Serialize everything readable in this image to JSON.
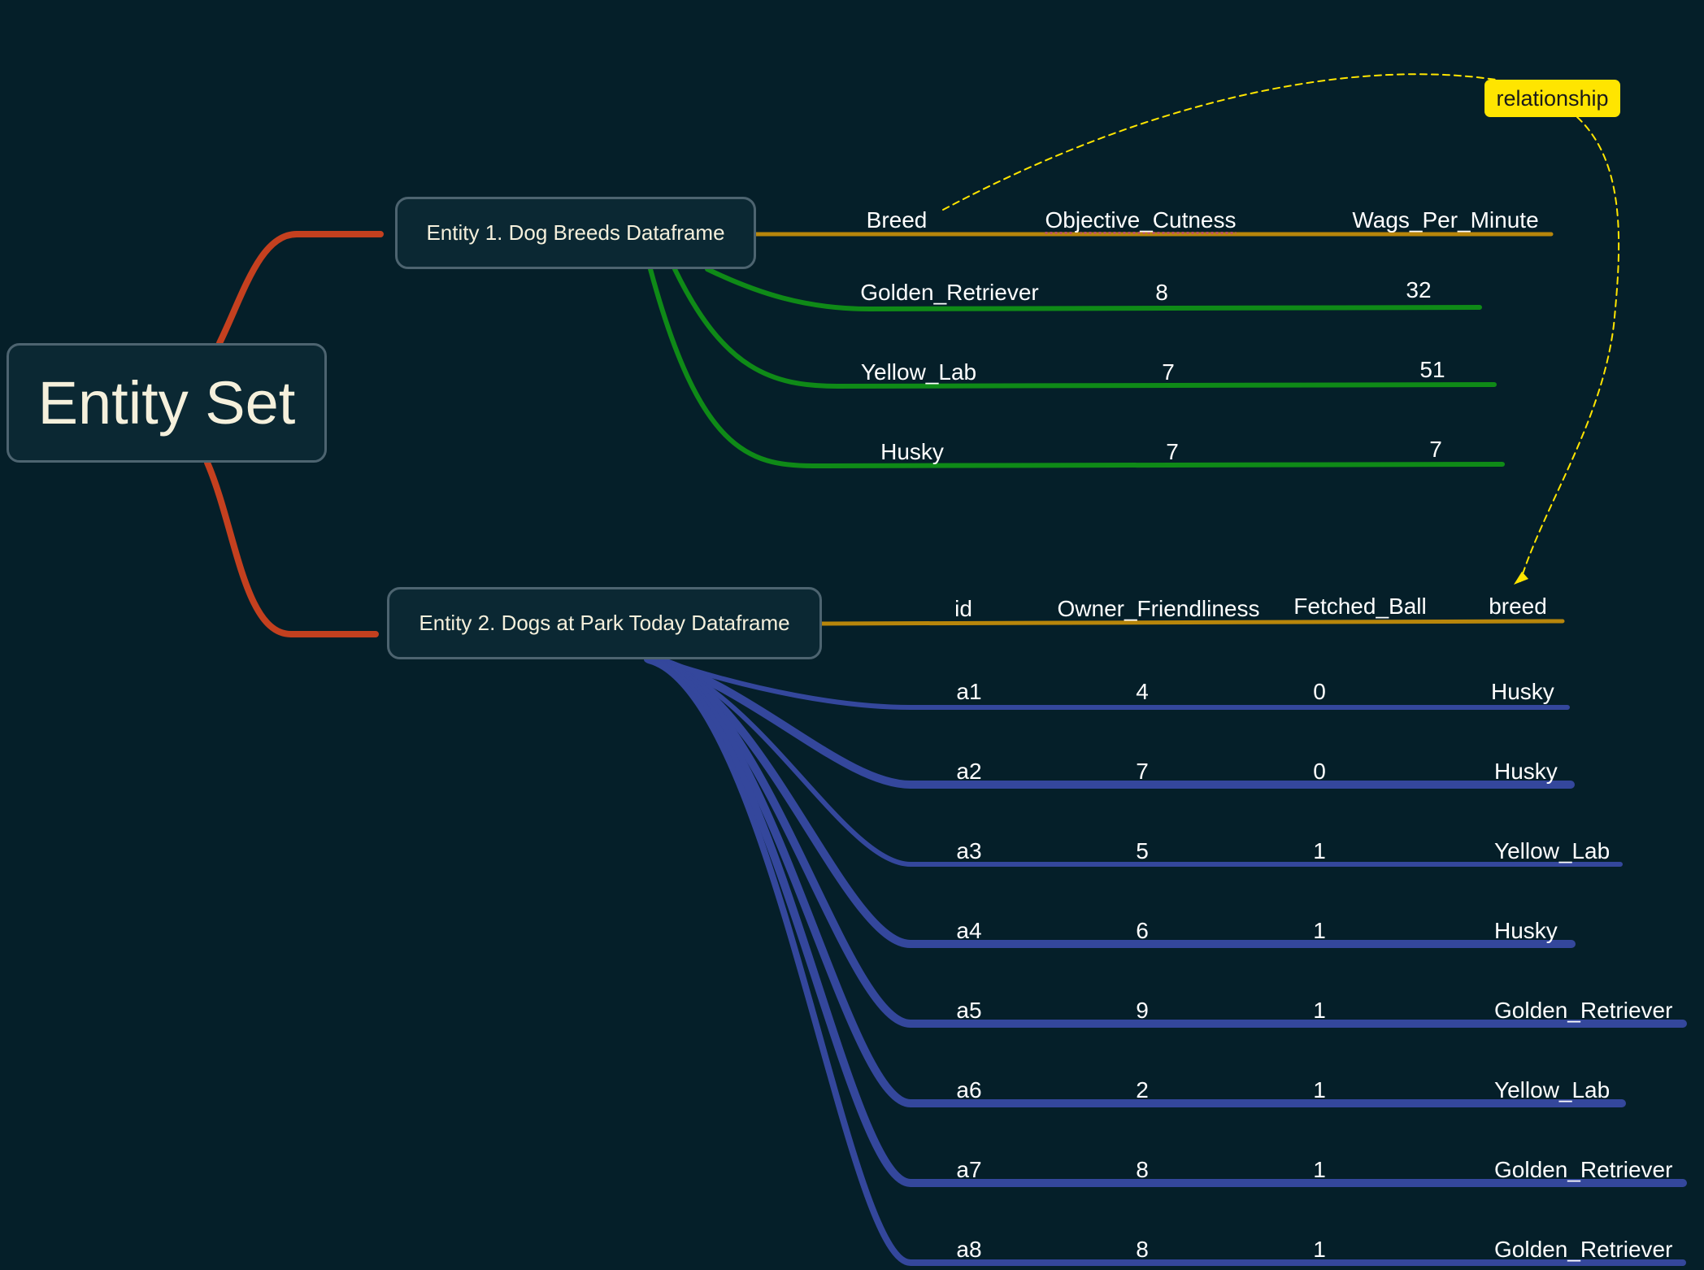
{
  "root": {
    "label": "Entity Set"
  },
  "entity1": {
    "label": "Entity 1. Dog Breeds Dataframe",
    "columns": [
      "Breed",
      "Objective_Cutness",
      "Wags_Per_Minute"
    ],
    "rows": [
      [
        "Golden_Retriever",
        "8",
        "32"
      ],
      [
        "Yellow_Lab",
        "7",
        "51"
      ],
      [
        "Husky",
        "7",
        "7"
      ]
    ]
  },
  "entity2": {
    "label": "Entity 2. Dogs at Park Today Dataframe",
    "columns": [
      "id",
      "Owner_Friendliness",
      "Fetched_Ball",
      "breed"
    ],
    "rows": [
      [
        "a1",
        "4",
        "0",
        "Husky"
      ],
      [
        "a2",
        "7",
        "0",
        "Husky"
      ],
      [
        "a3",
        "5",
        "1",
        "Yellow_Lab"
      ],
      [
        "a4",
        "6",
        "1",
        "Husky"
      ],
      [
        "a5",
        "9",
        "1",
        "Golden_Retriever"
      ],
      [
        "a6",
        "2",
        "1",
        "Yellow_Lab"
      ],
      [
        "a7",
        "8",
        "1",
        "Golden_Retriever"
      ],
      [
        "a8",
        "8",
        "1",
        "Golden_Retriever"
      ]
    ]
  },
  "relationship": {
    "label": "relationship"
  },
  "colors": {
    "background": "#051f29",
    "root_branch": "#c4401f",
    "header_branch": "#b8860b",
    "entity1_rows": "#0f8a17",
    "entity2_rows": "#34479c",
    "relationship": "#ffe500"
  }
}
